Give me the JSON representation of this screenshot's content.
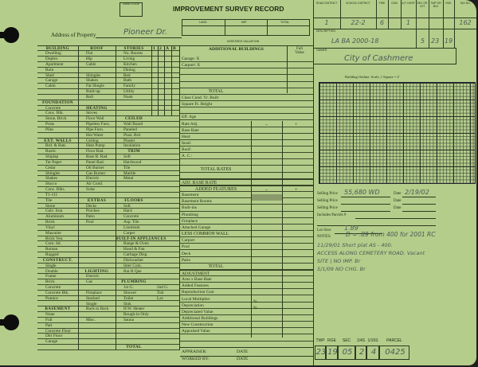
{
  "header": {
    "land_code_label": "LAND CODE",
    "title": "IMPROVEMENT SURVEY RECORD",
    "valuation_cols": [
      "LAND",
      "IMP.",
      "TOTAL"
    ],
    "assessed_valuation": "ASSESSED VALUATION",
    "address_label": "Address of Property",
    "address_value": "Pioneer Dr."
  },
  "col1": [
    "BUILDING",
    "Dwelling",
    "Duplex",
    "Apartment",
    "Barn",
    "Shed",
    "Garage",
    "Cabin",
    "",
    "",
    "FOUNDATION",
    "Concrete",
    "Conc. Blk.",
    "Stone, Brick",
    "Posts",
    "Piles",
    "",
    "EXT. WALLS",
    "Brd. & Bats",
    "Rustic",
    "Shiplap",
    "Tar Paper",
    "Cedar",
    "Shingles",
    "Shakes",
    "Stucco",
    "Conc. Blks.",
    "T1-111",
    "Tile",
    "Stone",
    "Galv. Iron",
    "Aluminum",
    "Brick",
    "Vinyl",
    "Masonite",
    "Brick Ven.",
    "Com. Sd.",
    "Roman",
    "Rugged",
    "CONSTRUCT.",
    "Single",
    "Double",
    "Frame",
    "Brick",
    "Concrete",
    "Concrete Blk.",
    "Pumice",
    "",
    "BASEMENT",
    "None",
    "Full",
    "Part",
    "Concrete Floor",
    "Dirt Floor",
    "Garage",
    ""
  ],
  "col2": [
    "ROOF",
    "Flat",
    "Hip",
    "Gable",
    "",
    "Shingles",
    "Shakes",
    "Fat Shngle",
    "Built-up",
    "Roll",
    "",
    "HEATING",
    "Stoves",
    "Floor Wall",
    "Pipeless Furn.",
    "Pipe Furn.",
    "Hot Water",
    "Ceiling",
    "Heat Pump",
    "Floor Rad.",
    "Base B. Rad.",
    "Panel Rad.",
    "Oil Burner",
    "Gas Burner",
    "Electric",
    "Air Cond.",
    "Solar",
    "",
    "EXTRAS",
    "Decks",
    "Porches",
    "Patio",
    "Pool",
    "",
    "",
    "",
    "",
    "",
    "",
    "",
    "",
    "LIGHTING",
    "Electric",
    "Gas",
    "",
    "Fireplace",
    "Stacked",
    "Single",
    "Back to Back",
    "",
    "Misc.",
    "",
    "",
    "",
    "",
    ""
  ],
  "col3": [
    "STORIES",
    "No. Rooms",
    "Living",
    "Kitchen",
    "Dining",
    "Bed",
    "Bath",
    "Family",
    "Utility",
    "Nook",
    "",
    "",
    "",
    "CEILED",
    "Wall Board",
    "Paneled",
    "Plast. Brd.",
    "Plaster",
    "Insulation",
    "TRIM",
    "Soft",
    "Hardwood",
    "Tile",
    "Marble",
    "Metal",
    "",
    "",
    "",
    "FLOORS",
    "Soft",
    "Hard",
    "Concrete",
    "Asp. Tile",
    "Linoleum",
    "Carpet",
    "BUILT-IN APPLIANCES",
    "Range & Oven",
    "Hood & Fan",
    "Garbage Disp.",
    "Dishwasher",
    "Inter Com.",
    "Bar B Que",
    "",
    "PLUMBING",
    "1st G.",
    "Shower",
    "Toilet",
    "Sink",
    "H.W. Heater",
    "Rough-in Only",
    "Sauna",
    "",
    "",
    "",
    "",
    "TOTAL"
  ],
  "col3_extra": {
    "44": "2nd G.",
    "45": "Tub",
    "46": "Lav"
  },
  "stories_subcols": [
    "1",
    "2",
    "A",
    "B"
  ],
  "middle": {
    "header": "ADDITIONAL BUILDINGS",
    "full_value": "Full Value",
    "rows": [
      "Garage:      X",
      "Carport:      X",
      "",
      "",
      "",
      "TOTAL",
      "Class          Cond.                    Yr. Built",
      "Square Ft.                          Height",
      "",
      "Eff. Age",
      "Rate Adj.",
      "Base Rate",
      "Heat:",
      "Insul:",
      "Roof:",
      "A. C.:",
      "",
      "TOTAL RATES",
      "",
      "ADJ. BASE RATE",
      "ADDED FEATURES",
      "Basement",
      "Basement Rooms",
      "Built-ins",
      "Plumbing",
      "Fireplace",
      "Attached Garage",
      "LESS COMMON WALL",
      "Carport",
      "Pool",
      "Deck",
      "Patio",
      "TOTAL",
      "ADJUSTMENT",
      "Area          x Base Rate",
      "Added Features",
      "Reproduction Cost",
      "Local Multiplier",
      "Depreciation",
      "Depreciated Value",
      "Additional Buildings",
      "New Construction",
      "Appraised Value",
      "",
      ""
    ],
    "minus": "–",
    "plus": "+",
    "percent": "%",
    "appraiser": "APPRAISER:",
    "worked_by": "WORKED BY:",
    "date": "DATE"
  },
  "right": {
    "cols": [
      "ROAD DISTRICT",
      "SCHOOL DISTRICT",
      "FIRE",
      "CEM",
      "A.P. HOSP",
      "SEC OR LOT",
      "TWP OR BLK",
      "RGE",
      "TAX NO."
    ],
    "values": [
      "1",
      "22-2",
      "6",
      "",
      "1",
      "",
      "",
      "",
      "162"
    ],
    "description_label": "DESCRIPTION",
    "description": "LA BA 2000-18",
    "sec": "5",
    "twp": "23",
    "rge": "19",
    "owner_label": "OWNER",
    "owner": "City of Cashmere",
    "outline_caption": "Building Outline:  Scale, 1 Square = 2'",
    "selling_price_label": "Selling Price",
    "date_label": "Date",
    "selling_price_1": "55,680  WD",
    "date_1": "2/19/02",
    "includes_parcels": "Includes Parcels #",
    "lot_size_label": "Lot Size:",
    "lot_size": "1.89",
    "notes_label": "NOTES:",
    "notes": [
      "D = .89 from 400 for 2001 RC",
      "11/29/01   Short plat AS - 400.",
      "ACCESS  ALONG  CEMETERY  ROAD.  Vacant",
      "SITE  |  NO  IMP.  Br",
      "5/1/09   NO  CHG.  Br"
    ],
    "parcel_labels": [
      "TWP",
      "RGE",
      "SEC",
      "1/4S",
      "1/16S",
      "PARCEL"
    ],
    "parcel_values": [
      "23",
      "19",
      "05",
      "2",
      "4",
      "0425"
    ]
  },
  "colors": {
    "paper": "#b4cd8b",
    "ink": "#1f2a12"
  }
}
